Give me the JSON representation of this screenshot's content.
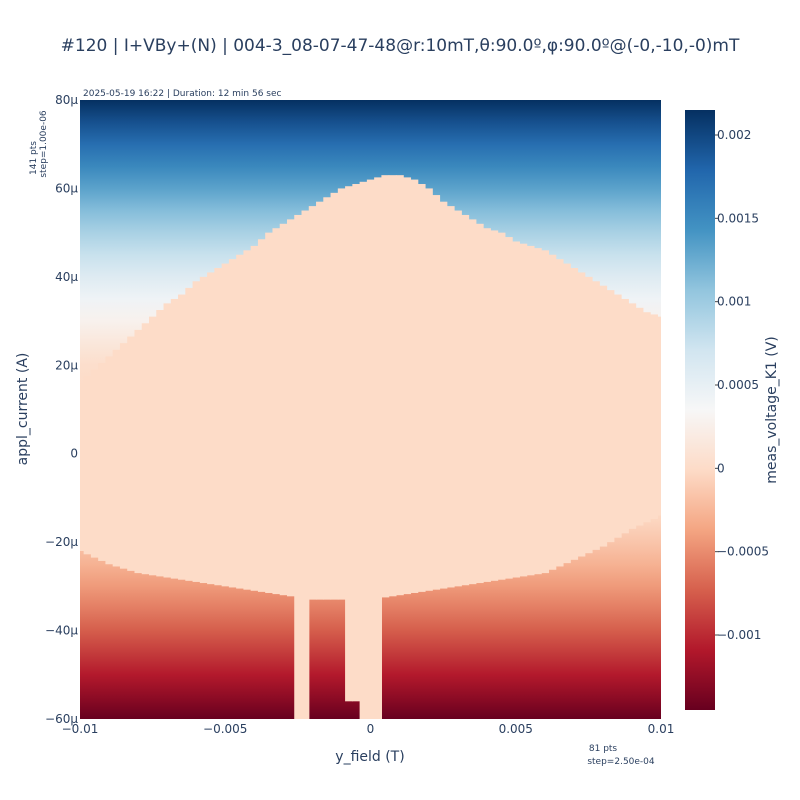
{
  "chart_data": {
    "type": "heatmap",
    "title": "#120 | I+VBy+(N) | 004-3_08-07-47-48@r:10mT,θ:90.0º,φ:90.0º@(-0,-10,-0)mT",
    "subtitle": "2025-05-19 16:22 | Duration: 12 min 56 sec",
    "xlabel": "y_field (T)",
    "ylabel": "appl_current (A)",
    "colorbar_label": "meas_voltage_K1 (V)",
    "colorscale": "RdBu (reversed)",
    "x_points_note": [
      "81 pts",
      "step=2.50e-04"
    ],
    "y_points_note": [
      "141 pts",
      "step=1.00e-06"
    ],
    "x_range": [
      -0.01,
      0.01
    ],
    "y_range": [
      -6e-05,
      8e-05
    ],
    "z_range": [
      -0.00145,
      0.00215
    ],
    "x_ticks": [
      {
        "value": -0.01,
        "label": "−0.01"
      },
      {
        "value": -0.005,
        "label": "−0.005"
      },
      {
        "value": 0,
        "label": "0"
      },
      {
        "value": 0.005,
        "label": "0.005"
      },
      {
        "value": 0.01,
        "label": "0.01"
      }
    ],
    "y_ticks": [
      {
        "value": 8e-05,
        "label": "80μ"
      },
      {
        "value": 6e-05,
        "label": "60μ"
      },
      {
        "value": 4e-05,
        "label": "40μ"
      },
      {
        "value": 2e-05,
        "label": "20μ"
      },
      {
        "value": 0,
        "label": "0"
      },
      {
        "value": -2e-05,
        "label": "−20μ"
      },
      {
        "value": -4e-05,
        "label": "−40μ"
      },
      {
        "value": -6e-05,
        "label": "−60μ"
      }
    ],
    "colorbar_ticks": [
      {
        "value": 0.002,
        "label": "0.002"
      },
      {
        "value": 0.0015,
        "label": "0.0015"
      },
      {
        "value": 0.001,
        "label": "0.001"
      },
      {
        "value": 0.0005,
        "label": "0.0005"
      },
      {
        "value": 0,
        "label": "0"
      },
      {
        "value": -0.0005,
        "label": "−0.0005"
      },
      {
        "value": -0.001,
        "label": "−0.001"
      }
    ],
    "upper_switching_current_uA": {
      "x": [
        -0.01,
        -0.0095,
        -0.009,
        -0.0085,
        -0.008,
        -0.0075,
        -0.007,
        -0.0065,
        -0.006,
        -0.0055,
        -0.005,
        -0.0045,
        -0.004,
        -0.0035,
        -0.003,
        -0.0025,
        -0.002,
        -0.0015,
        -0.001,
        -0.0005,
        0,
        0.0005,
        0.001,
        0.0015,
        0.002,
        0.0025,
        0.003,
        0.0035,
        0.004,
        0.0045,
        0.005,
        0.0055,
        0.006,
        0.0065,
        0.007,
        0.0075,
        0.008,
        0.0085,
        0.009,
        0.0095,
        0.01
      ],
      "y": [
        16,
        19,
        22,
        25,
        28,
        31,
        34,
        36,
        39,
        41,
        43,
        45,
        47,
        50,
        52,
        54,
        56,
        58,
        60,
        61,
        62,
        63,
        63,
        62,
        60,
        57,
        55,
        53,
        51,
        50,
        48,
        47,
        46,
        44,
        42,
        40,
        38,
        36,
        34,
        32,
        31
      ]
    },
    "lower_switching_current_uA": {
      "x": [
        -0.01,
        -0.009,
        -0.008,
        -0.007,
        -0.006,
        -0.005,
        -0.004,
        -0.003,
        -0.002,
        -0.001,
        0,
        0.001,
        0.002,
        0.003,
        0.004,
        0.005,
        0.006,
        0.007,
        0.008,
        0.009,
        0.01
      ],
      "y": [
        -22,
        -25,
        -27,
        -28,
        -29,
        -30,
        -31,
        -32,
        -33,
        -33,
        -33,
        -32,
        -31,
        -30,
        -29,
        -28,
        -27,
        -24,
        -21,
        -17,
        -14
      ]
    },
    "low_current_gaps": [
      {
        "x_from": -0.0026,
        "x_to": -0.0021
      },
      {
        "x_from": -0.0008,
        "x_to": -0.0004,
        "y_floor_uA": -56
      },
      {
        "x_from": -0.0003,
        "x_to": 0.0003
      }
    ]
  }
}
